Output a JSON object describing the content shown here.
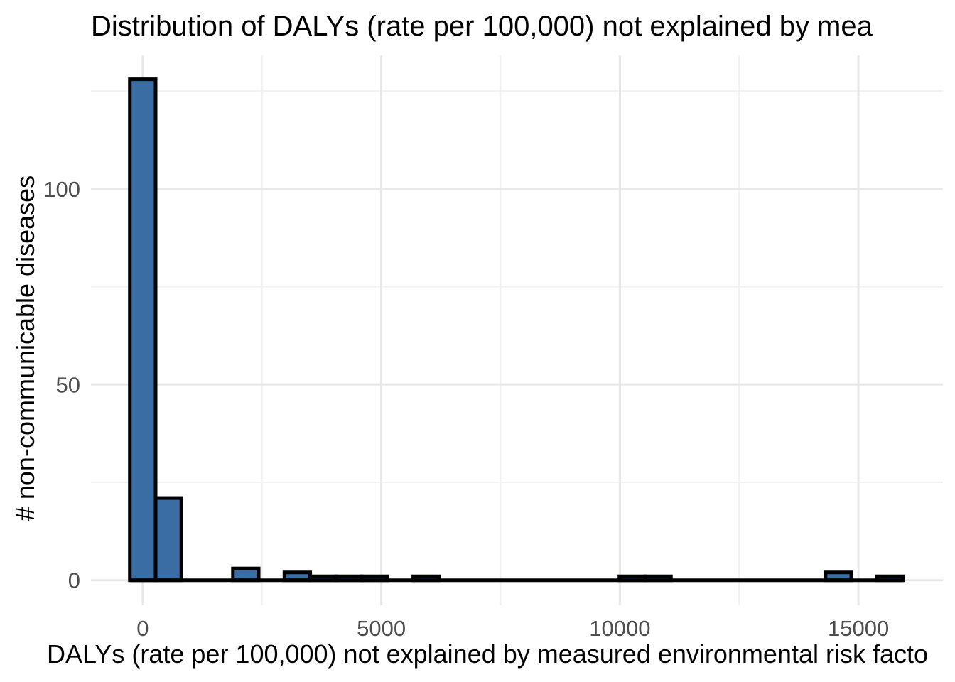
{
  "figure": {
    "title": "Distribution of DALYs (rate per 100,000) not explained by mea",
    "x_axis_label": "DALYs (rate per 100,000) not explained by measured environmental risk facto",
    "y_axis_label": "# non-communicable diseases"
  },
  "chart_data": {
    "type": "bar",
    "subtype": "histogram",
    "title": "Distribution of DALYs (rate per 100,000) not explained by mea",
    "xlabel": "DALYs (rate per 100,000) not explained by measured environmental risk facto",
    "ylabel": "# non-communicable diseases",
    "binwidth": 540,
    "bins": [
      {
        "center": 0,
        "count": 128
      },
      {
        "center": 540,
        "count": 21
      },
      {
        "center": 2160,
        "count": 3
      },
      {
        "center": 3240,
        "count": 2
      },
      {
        "center": 3780,
        "count": 1
      },
      {
        "center": 4320,
        "count": 1
      },
      {
        "center": 4860,
        "count": 1
      },
      {
        "center": 5940,
        "count": 1
      },
      {
        "center": 10260,
        "count": 1
      },
      {
        "center": 10800,
        "count": 1
      },
      {
        "center": 14580,
        "count": 2
      },
      {
        "center": 15660,
        "count": 1
      }
    ],
    "x_axis": {
      "major_ticks": [
        0,
        5000,
        10000,
        15000
      ],
      "minor_gridlines": [
        2500,
        7500,
        12500
      ],
      "range": [
        -1085,
        16770
      ]
    },
    "y_axis": {
      "major_ticks": [
        0,
        50,
        100
      ],
      "minor_gridlines": [
        25,
        75,
        125
      ],
      "range": [
        -6.4,
        134.1
      ]
    },
    "grid": true,
    "legend": false,
    "colors": {
      "bar_fill": "#3A6DA4",
      "bar_stroke": "#000000",
      "grid_major": "#E8E8E8",
      "grid_minor": "#F1F1F1",
      "tick_label": "#4D4D4D",
      "title_text": "#000000",
      "background": "#FFFFFF"
    }
  }
}
